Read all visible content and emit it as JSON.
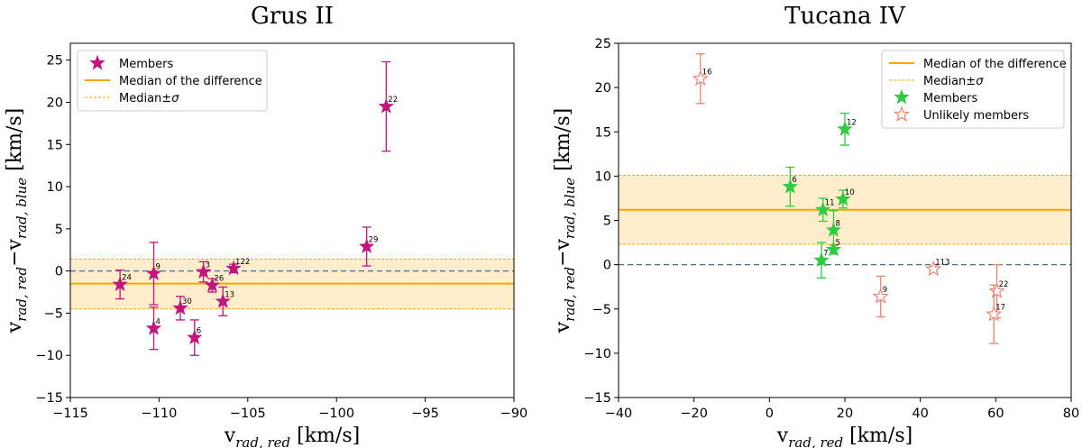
{
  "chart_data": [
    {
      "type": "scatter",
      "title": "Grus II",
      "xlabel": "v_rad,red [km/s]",
      "ylabel": "v_rad,red−v_rad,blue [km/s]",
      "xlim": [
        -115,
        -90
      ],
      "ylim": [
        -15,
        27
      ],
      "xticks": [
        -115,
        -110,
        -105,
        -100,
        -95,
        -90
      ],
      "yticks": [
        -15,
        -10,
        -5,
        0,
        5,
        10,
        15,
        20,
        25
      ],
      "median": -1.5,
      "sigma_band": [
        -4.5,
        1.4
      ],
      "zero_line": 0,
      "legend": {
        "position": "top-left",
        "entries": [
          "Members",
          "Median of the difference",
          "Median±σ"
        ]
      },
      "series": [
        {
          "name": "Members",
          "color": "#c2157e",
          "marker": "filled-star",
          "points": [
            {
              "label": "24",
              "x": -112.2,
              "y": -1.6,
              "err": 1.7
            },
            {
              "label": "9",
              "x": -110.3,
              "y": -0.3,
              "err": 3.7
            },
            {
              "label": "4",
              "x": -110.3,
              "y": -6.8,
              "err": 2.5
            },
            {
              "label": "30",
              "x": -108.8,
              "y": -4.4,
              "err": 1.4
            },
            {
              "label": "6",
              "x": -108.0,
              "y": -7.9,
              "err": 2.1
            },
            {
              "label": "3",
              "x": -107.5,
              "y": -0.1,
              "err": 1.2
            },
            {
              "label": "26",
              "x": -107.0,
              "y": -1.7,
              "err": 0.8
            },
            {
              "label": "13",
              "x": -106.4,
              "y": -3.6,
              "err": 1.7
            },
            {
              "label": "122",
              "x": -105.8,
              "y": 0.3,
              "err": 0.5
            },
            {
              "label": "29",
              "x": -98.3,
              "y": 2.9,
              "err": 2.3
            },
            {
              "label": "22",
              "x": -97.2,
              "y": 19.5,
              "err": 5.3
            }
          ]
        }
      ]
    },
    {
      "type": "scatter",
      "title": "Tucana IV",
      "xlabel": "v_rad,red [km/s]",
      "ylabel": "v_rad,red−v_rad,blue [km/s]",
      "xlim": [
        -40,
        80
      ],
      "ylim": [
        -15,
        25
      ],
      "xticks": [
        -40,
        -20,
        0,
        20,
        40,
        60,
        80
      ],
      "yticks": [
        -15,
        -10,
        -5,
        0,
        5,
        10,
        15,
        20,
        25
      ],
      "median": 6.2,
      "sigma_band": [
        2.3,
        10.1
      ],
      "zero_line": 0,
      "legend": {
        "position": "top-right",
        "entries": [
          "Median of the difference",
          "Median±σ",
          "Members",
          "Unlikely members"
        ]
      },
      "series": [
        {
          "name": "Members",
          "color": "#2ecc40",
          "marker": "filled-star",
          "points": [
            {
              "label": "6",
              "x": 5.5,
              "y": 8.8,
              "err": 2.2
            },
            {
              "label": "12",
              "x": 20.0,
              "y": 15.3,
              "err": 1.8
            },
            {
              "label": "11",
              "x": 14.2,
              "y": 6.2,
              "err": 1.3
            },
            {
              "label": "10",
              "x": 19.5,
              "y": 7.4,
              "err": 1.0
            },
            {
              "label": "8",
              "x": 17.0,
              "y": 3.9,
              "err": 2.2
            },
            {
              "label": "7",
              "x": 13.8,
              "y": 0.5,
              "err": 2.0
            },
            {
              "label": "5",
              "x": 17.0,
              "y": 1.7,
              "err": 0.5
            }
          ]
        },
        {
          "name": "Unlikely members",
          "color": "#f08070",
          "marker": "open-star",
          "points": [
            {
              "label": "16",
              "x": -18.3,
              "y": 21.0,
              "err": 2.8
            },
            {
              "label": "9",
              "x": 29.5,
              "y": -3.6,
              "err": 2.3
            },
            {
              "label": "113",
              "x": 43.5,
              "y": -0.5,
              "err": 0.3
            },
            {
              "label": "22",
              "x": 60.3,
              "y": -3.0,
              "err": 3.0
            },
            {
              "label": "17",
              "x": 59.5,
              "y": -5.6,
              "err": 3.3
            }
          ]
        }
      ]
    }
  ]
}
